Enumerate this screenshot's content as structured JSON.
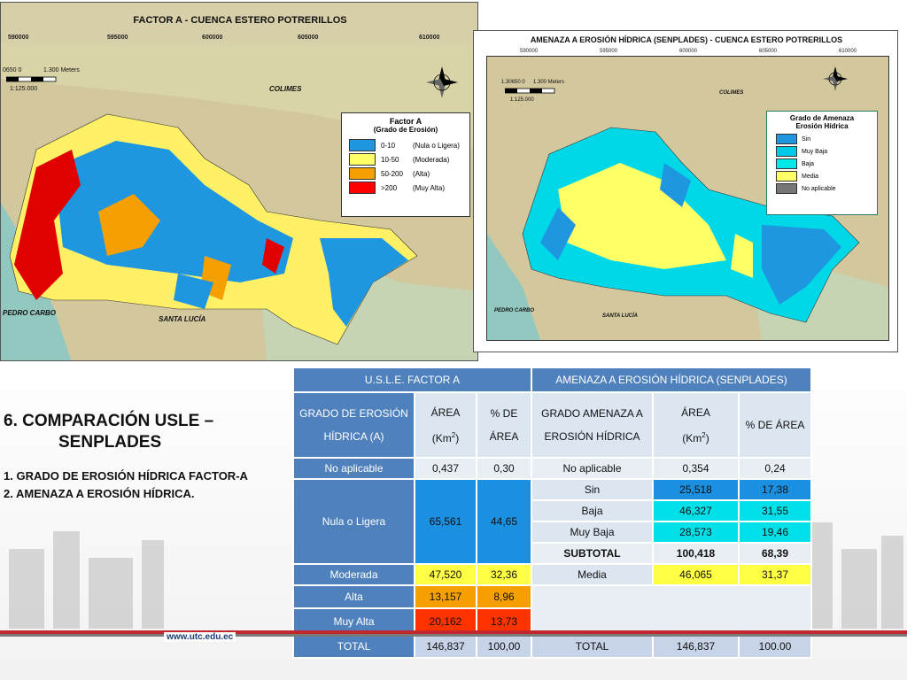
{
  "map_a": {
    "title": "FACTOR A - CUENCA ESTERO POTRERILLOS",
    "coords": [
      "590000",
      "595000",
      "600000",
      "605000",
      "610000"
    ],
    "scale_text": "0650 0",
    "scale_meters": "1.300 Meters",
    "scale_ratio": "1:125.000",
    "places": {
      "colimes": "COLIMES",
      "pedro_carbo": "PEDRO CARBO",
      "santa_lucia": "SANTA LUCÍA"
    },
    "legend": {
      "title_line1": "Factor A",
      "title_line2": "(Grado de Erosión)",
      "items": [
        {
          "range": "0-10",
          "label": "(Nula o Ligera)",
          "color": "#1e96e0"
        },
        {
          "range": "10-50",
          "label": "(Moderada)",
          "color": "#ffff66"
        },
        {
          "range": "50-200",
          "label": "(Alta)",
          "color": "#f5a000"
        },
        {
          "range": ">200",
          "label": "(Muy Alta)",
          "color": "#ff0000"
        }
      ]
    }
  },
  "map_b": {
    "title": "AMENAZA A EROSIÓN HÍDRICA (SENPLADES) - CUENCA ESTERO POTRERILLOS",
    "coords": [
      "590000",
      "595000",
      "600000",
      "605000",
      "610000"
    ],
    "scale_text": "1.30650 0",
    "scale_meters": "1.300 Meters",
    "scale_ratio": "1:125.000",
    "places": {
      "colimes": "COLIMES",
      "pedro_carbo": "PEDRO CARBO",
      "santa_lucia": "SANTA LUCÍA"
    },
    "legend": {
      "title_line1": "Grado de Amenaza",
      "title_line2": "Erosión Hídrica",
      "items": [
        {
          "label": "Sin",
          "color": "#1e96e0"
        },
        {
          "label": "Muy Baja",
          "color": "#00c8e8"
        },
        {
          "label": "Baja",
          "color": "#00e8e8"
        },
        {
          "label": "Media",
          "color": "#ffff66"
        },
        {
          "label": "No aplicable",
          "color": "#777777"
        }
      ]
    }
  },
  "heading": {
    "line1": "6. COMPARACIÓN USLE –",
    "line2": "SENPLADES",
    "item1": "1. GRADO DE EROSIÓN HÍDRICA FACTOR-A",
    "item2": "2. AMENAZA A EROSIÓN HÍDRICA."
  },
  "table": {
    "group_left": "U.S.L.E. FACTOR A",
    "group_right": "AMENAZA A EROSIÓN HÍDRICA (SENPLADES)",
    "col_grado": "GRADO DE EROSIÓN HÍDRICA (A)",
    "col_area": "ÁREA",
    "col_area_unit": "(Km",
    "col_area_sup": "2",
    "col_area_close": ")",
    "col_pct": "% DE ÁREA",
    "col_amenaza": "GRADO AMENAZA A EROSIÓN HÍDRICA",
    "col_area2": "ÁREA",
    "col_area2_unit": "(Km",
    "col_area2_sup": "2",
    "col_area2_close": ")",
    "col_pct2": "% DE ÁREA",
    "rows": {
      "no_aplicable": {
        "grado": "No aplicable",
        "area": "0,437",
        "pct": "0,30",
        "amenaza": "No aplicable",
        "area2": "0,354",
        "pct2": "0,24"
      },
      "nula": {
        "grado": "Nula o Ligera",
        "area": "65,561",
        "pct": "44,65"
      },
      "sin": {
        "amenaza": "Sin",
        "area2": "25,518",
        "pct2": "17,38"
      },
      "baja": {
        "amenaza": "Baja",
        "area2": "46,327",
        "pct2": "31,55"
      },
      "muy_baja": {
        "amenaza": "Muy Baja",
        "area2": "28,573",
        "pct2": "19,46"
      },
      "subtotal": {
        "amenaza": "SUBTOTAL",
        "area2": "100,418",
        "pct2": "68,39"
      },
      "moderada": {
        "grado": "Moderada",
        "area": "47,520",
        "pct": "32,36",
        "amenaza": "Media",
        "area2": "46,065",
        "pct2": "31,37"
      },
      "alta": {
        "grado": "Alta",
        "area": "13,157",
        "pct": "8,96"
      },
      "muy_alta": {
        "grado": "Muy Alta",
        "area": "20,162",
        "pct": "13,73"
      },
      "total": {
        "grado": "TOTAL",
        "area": "146,837",
        "pct": "100,00",
        "amenaza": "TOTAL",
        "area2": "146,837",
        "pct2": "100.00"
      }
    }
  },
  "footer": {
    "url": "www.utc.edu.ec"
  }
}
